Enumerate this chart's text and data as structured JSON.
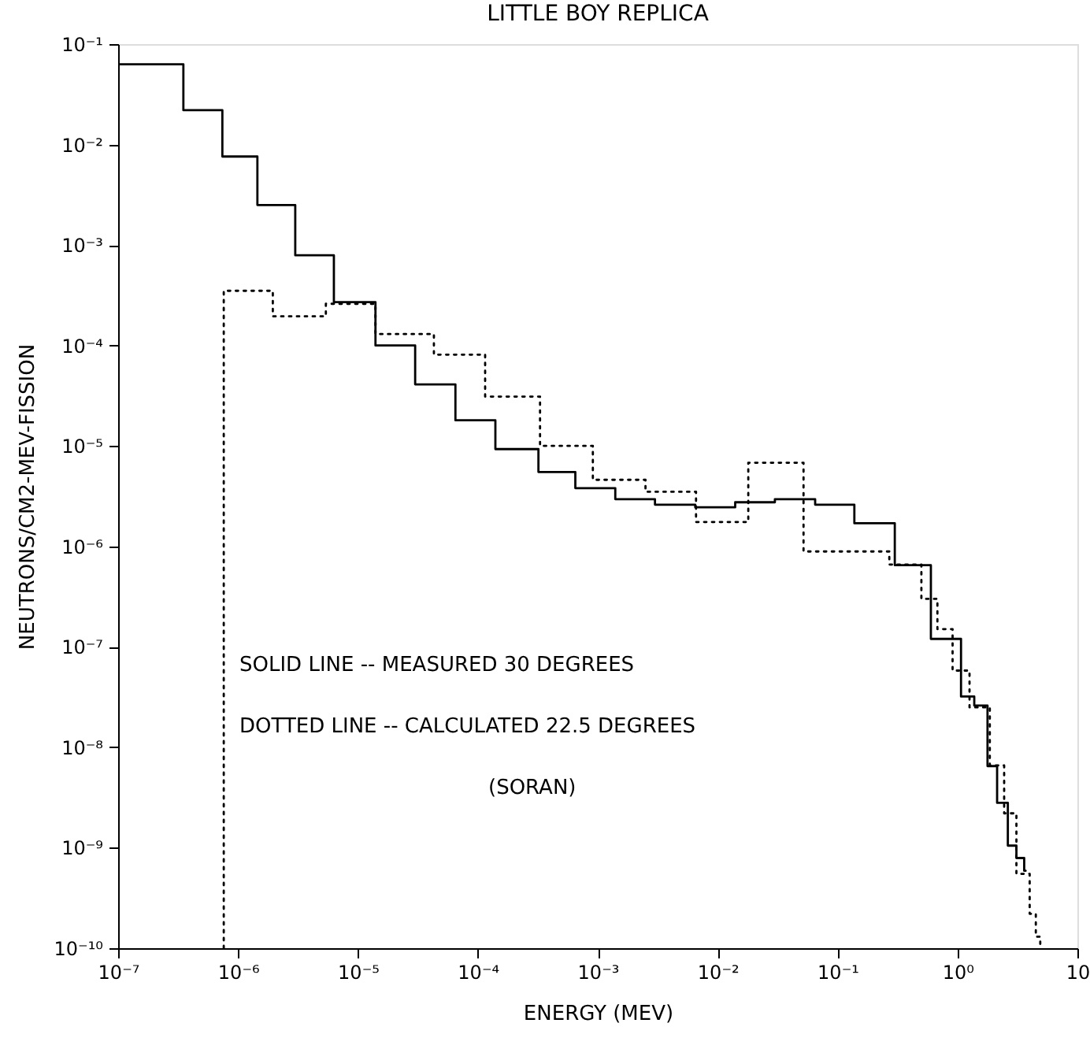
{
  "chart_data": {
    "type": "step",
    "title": "LITTLE BOY REPLICA",
    "xlabel": "ENERGY (MEV)",
    "ylabel": "NEUTRONS/CM2-MEV-FISSION",
    "log": "xy",
    "grid": false,
    "xlim": [
      1e-07,
      10
    ],
    "ylim": [
      1e-10,
      0.1
    ],
    "xticks": [
      {
        "value": 1e-07,
        "label": "10⁻⁷"
      },
      {
        "value": 1e-06,
        "label": "10⁻⁶"
      },
      {
        "value": 1e-05,
        "label": "10⁻⁵"
      },
      {
        "value": 0.0001,
        "label": "10⁻⁴"
      },
      {
        "value": 0.001,
        "label": "10⁻³"
      },
      {
        "value": 0.01,
        "label": "10⁻²"
      },
      {
        "value": 0.1,
        "label": "10⁻¹"
      },
      {
        "value": 1,
        "label": "10⁰"
      },
      10
    ],
    "yticks": [
      {
        "value": 1e-10,
        "label": "10⁻¹⁰"
      },
      {
        "value": 1e-09,
        "label": "10⁻⁹"
      },
      {
        "value": 1e-08,
        "label": "10⁻⁸"
      },
      {
        "value": 1e-07,
        "label": "10⁻⁷"
      },
      {
        "value": 1e-06,
        "label": "10⁻⁶"
      },
      {
        "value": 1e-05,
        "label": "10⁻⁵"
      },
      {
        "value": 0.0001,
        "label": "10⁻⁴"
      },
      {
        "value": 0.001,
        "label": "10⁻³"
      },
      {
        "value": 0.01,
        "label": "10⁻²"
      },
      {
        "value": 0.1,
        "label": "10⁻¹"
      }
    ],
    "annotations": [
      "SOLID LINE -- MEASURED 30 DEGREES",
      "DOTTED LINE -- CALCULATED 22.5 DEGREES",
      "(SORAN)"
    ],
    "series": [
      {
        "color": "#000000",
        "line_style": "solid",
        "x": [
          1e-07,
          3.5e-07,
          7.4e-07,
          1.45e-06,
          3e-06,
          6.3e-06,
          1.4e-05,
          3e-05,
          6.5e-05,
          0.00014,
          0.00032,
          0.00065,
          0.0014,
          0.003,
          0.0065,
          0.014,
          0.03,
          0.065,
          0.138,
          0.3,
          0.6,
          1.07,
          1.38,
          1.78,
          2.14,
          2.63,
          3.1,
          3.6,
          3.7
        ],
        "values": [
          0.063,
          0.022,
          0.0076,
          0.0025,
          0.00079,
          0.00027,
          0.0001,
          4.1e-05,
          1.8e-05,
          9.3e-06,
          5.5e-06,
          3.8e-06,
          2.95e-06,
          2.6e-06,
          2.45e-06,
          2.75e-06,
          2.95e-06,
          2.6e-06,
          1.7e-06,
          6.5e-07,
          1.2e-07,
          3.2e-08,
          2.6e-08,
          6.5e-09,
          2.8e-09,
          1.05e-09,
          7.9e-10,
          5.9e-10,
          5.9e-10
        ]
      },
      {
        "color": "#000000",
        "line_style": "dotted",
        "x": [
          7.6e-07,
          7.6e-07,
          1.95e-06,
          5.4e-06,
          1.4e-05,
          4.3e-05,
          0.000115,
          0.00033,
          0.00091,
          0.0025,
          0.0066,
          0.018,
          0.052,
          0.27,
          0.5,
          0.68,
          0.91,
          1.26,
          1.86,
          2.45,
          3.1,
          4.0,
          4.5,
          4.9
        ],
        "values": [
          1e-10,
          0.00035,
          0.000195,
          0.00026,
          0.00013,
          8.1e-05,
          3.1e-05,
          1e-05,
          4.6e-06,
          3.5e-06,
          1.75e-06,
          6.8e-06,
          8.9e-07,
          6.6e-07,
          3e-07,
          1.5e-07,
          5.8e-08,
          2.5e-08,
          6.6e-09,
          2.2e-09,
          5.5e-10,
          2.2e-10,
          1.3e-10,
          1e-10
        ]
      }
    ]
  }
}
